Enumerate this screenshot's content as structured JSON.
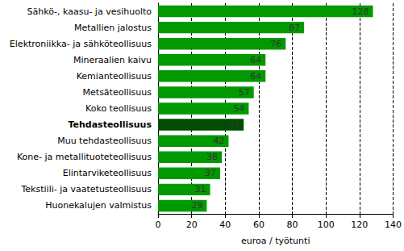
{
  "chart_data": {
    "type": "bar",
    "orientation": "horizontal",
    "categories": [
      "Sähkö-, kaasu- ja vesihuolto",
      "Metallien jalostus",
      "Elektroniikka- ja sähköteollisuus",
      "Mineraalien kaivu",
      "Kemianteollisuus",
      "Metsäteollisuus",
      "Koko teollisuus",
      "Tehdasteollisuus",
      "Muu tehdasteollisuus",
      "Kone- ja metallituoteteollisuus",
      "Elintarviketeollisuus",
      "Tekstiili- ja vaatetusteollisuus",
      "Huonekalujen valmistus"
    ],
    "values": [
      128,
      87,
      76,
      64,
      64,
      57,
      54,
      51,
      42,
      38,
      37,
      31,
      29
    ],
    "colors": [
      "#009900",
      "#009900",
      "#009900",
      "#009900",
      "#009900",
      "#009900",
      "#009900",
      "#004d00",
      "#009900",
      "#009900",
      "#009900",
      "#009900",
      "#009900"
    ],
    "x_label": "euroa / työtunti",
    "xlim": [
      0,
      140
    ],
    "xticks": [
      0,
      20,
      40,
      60,
      80,
      100,
      120,
      140
    ],
    "grid": true,
    "data_labels": true
  }
}
